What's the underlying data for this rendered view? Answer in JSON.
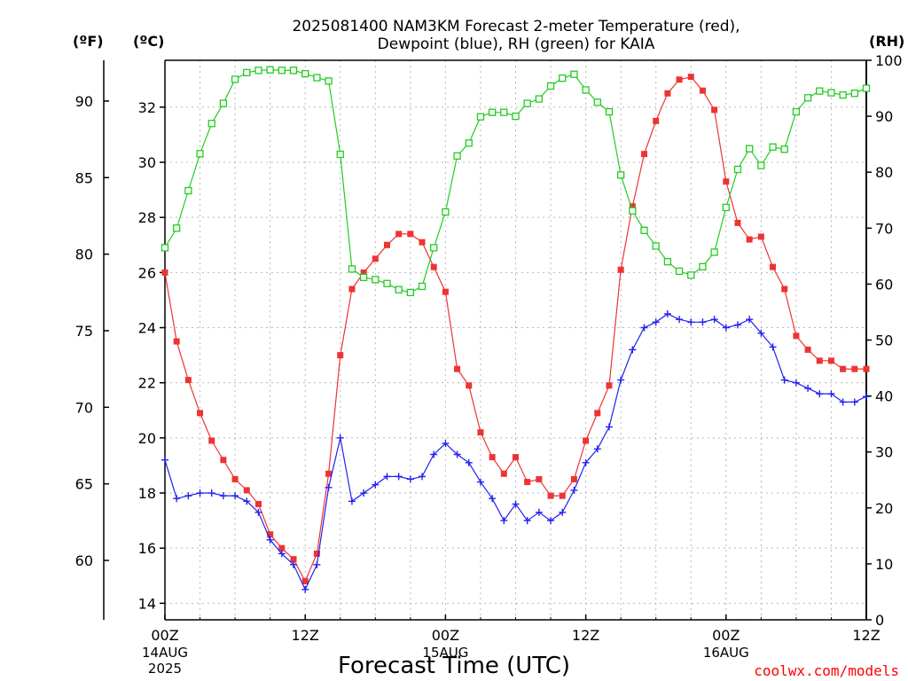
{
  "header": {
    "title_line1": "2025081400 NAM3KM Forecast 2-meter Temperature (red),",
    "title_line2": "Dewpoint (blue), RH (green) for KAIA",
    "unit_f": "(ºF)",
    "unit_c": "(ºC)",
    "unit_rh": "(RH)"
  },
  "footer": {
    "x_axis_label": "Forecast Time (UTC)",
    "credit": "coolwx.com/models"
  },
  "colors": {
    "temperature": "#ee3333",
    "dewpoint": "#2222ee",
    "rh": "#22cc22",
    "grid": "#b8b8b8",
    "credit": "#ff0000"
  },
  "chart_data": {
    "type": "line",
    "title": "2025081400 NAM3KM Forecast 2-meter Temperature (red), Dewpoint (blue), RH (green) for KAIA",
    "xlabel": "Forecast Time (UTC)",
    "xlim_hours": [
      0,
      60
    ],
    "x_ticks": [
      {
        "hour": 0,
        "label": "00Z",
        "date": "14AUG",
        "year": "2025"
      },
      {
        "hour": 12,
        "label": "12Z",
        "date": "",
        "year": ""
      },
      {
        "hour": 24,
        "label": "00Z",
        "date": "15AUG",
        "year": ""
      },
      {
        "hour": 36,
        "label": "12Z",
        "date": "",
        "year": ""
      },
      {
        "hour": 48,
        "label": "00Z",
        "date": "16AUG",
        "year": ""
      },
      {
        "hour": 60,
        "label": "12Z",
        "date": "",
        "year": ""
      }
    ],
    "axes": {
      "celsius": {
        "label": "(ºC)",
        "ticks": [
          14,
          16,
          18,
          20,
          22,
          24,
          26,
          28,
          30,
          32
        ],
        "lim": [
          13.4,
          33.7
        ]
      },
      "fahrenheit": {
        "label": "(ºF)",
        "ticks": [
          60,
          65,
          70,
          75,
          80,
          85,
          90
        ]
      },
      "rh": {
        "label": "(RH)",
        "ticks": [
          0,
          10,
          20,
          30,
          40,
          50,
          60,
          70,
          80,
          90,
          100
        ],
        "lim": [
          0,
          100
        ]
      }
    },
    "grid": true,
    "series": [
      {
        "name": "Temperature",
        "unit": "C",
        "color": "#ee3333",
        "marker": "filled-square",
        "hours": [
          0,
          1,
          2,
          3,
          4,
          5,
          6,
          7,
          8,
          9,
          10,
          11,
          12,
          13,
          14,
          15,
          16,
          17,
          18,
          19,
          20,
          21,
          22,
          23,
          24,
          25,
          26,
          27,
          28,
          29,
          30,
          31,
          32,
          33,
          34,
          35,
          36,
          37,
          38,
          39,
          40,
          41,
          42,
          43,
          44,
          45,
          46,
          47,
          48,
          49,
          50,
          51,
          52,
          53,
          54,
          55,
          56,
          57,
          58,
          59,
          60
        ],
        "values": [
          26.0,
          23.5,
          22.1,
          20.9,
          19.9,
          19.2,
          18.5,
          18.1,
          17.6,
          16.5,
          16.0,
          15.6,
          14.8,
          15.8,
          18.7,
          23.0,
          25.4,
          26.0,
          26.5,
          27.0,
          27.4,
          27.4,
          27.1,
          26.2,
          25.3,
          22.5,
          21.9,
          20.2,
          19.3,
          18.7,
          19.3,
          18.4,
          18.5,
          17.9,
          17.9,
          18.5,
          19.9,
          20.9,
          21.9,
          26.1,
          28.4,
          30.3,
          31.5,
          32.5,
          33.0,
          33.1,
          32.6,
          31.9,
          29.3,
          27.8,
          27.2,
          27.3,
          26.2,
          25.4,
          23.7,
          23.2,
          22.8,
          22.8,
          22.5,
          22.5,
          22.5
        ]
      },
      {
        "name": "Dewpoint",
        "unit": "C",
        "color": "#2222ee",
        "marker": "plus",
        "hours": [
          0,
          1,
          2,
          3,
          4,
          5,
          6,
          7,
          8,
          9,
          10,
          11,
          12,
          13,
          14,
          15,
          16,
          17,
          18,
          19,
          20,
          21,
          22,
          23,
          24,
          25,
          26,
          27,
          28,
          29,
          30,
          31,
          32,
          33,
          34,
          35,
          36,
          37,
          38,
          39,
          40,
          41,
          42,
          43,
          44,
          45,
          46,
          47,
          48,
          49,
          50,
          51,
          52,
          53,
          54,
          55,
          56,
          57,
          58,
          59,
          60
        ],
        "values": [
          19.2,
          17.8,
          17.9,
          18.0,
          18.0,
          17.9,
          17.9,
          17.7,
          17.3,
          16.3,
          15.8,
          15.4,
          14.5,
          15.4,
          18.2,
          20.0,
          17.7,
          18.0,
          18.3,
          18.6,
          18.6,
          18.5,
          18.6,
          19.4,
          19.8,
          19.4,
          19.1,
          18.4,
          17.8,
          17.0,
          17.6,
          17.0,
          17.3,
          17.0,
          17.3,
          18.1,
          19.1,
          19.6,
          20.4,
          22.1,
          23.2,
          24.0,
          24.2,
          24.5,
          24.3,
          24.2,
          24.2,
          24.3,
          24.0,
          24.1,
          24.3,
          23.8,
          23.3,
          22.1,
          22.0,
          21.8,
          21.6,
          21.6,
          21.3,
          21.3,
          21.5
        ]
      },
      {
        "name": "RH",
        "unit": "%",
        "color": "#22cc22",
        "marker": "open-square",
        "hours": [
          0,
          1,
          2,
          3,
          4,
          5,
          6,
          7,
          8,
          9,
          10,
          11,
          12,
          13,
          14,
          15,
          16,
          17,
          18,
          19,
          20,
          21,
          22,
          23,
          24,
          25,
          26,
          27,
          28,
          29,
          30,
          31,
          32,
          33,
          34,
          35,
          36,
          37,
          38,
          39,
          40,
          41,
          42,
          43,
          44,
          45,
          46,
          47,
          48,
          49,
          50,
          51,
          52,
          53,
          54,
          55,
          56,
          57,
          58,
          59,
          60
        ],
        "values": [
          66.5,
          70.0,
          76.7,
          83.3,
          88.7,
          92.3,
          96.6,
          97.8,
          98.2,
          98.3,
          98.2,
          98.2,
          97.6,
          96.9,
          96.3,
          83.2,
          62.7,
          61.2,
          60.8,
          60.1,
          59.0,
          58.5,
          59.6,
          66.5,
          72.9,
          82.9,
          85.2,
          89.9,
          90.7,
          90.7,
          90.0,
          92.3,
          93.1,
          95.4,
          96.8,
          97.5,
          94.7,
          92.5,
          90.8,
          79.5,
          73.1,
          69.6,
          66.8,
          64.0,
          62.3,
          61.6,
          63.1,
          65.7,
          73.7,
          80.5,
          84.2,
          81.2,
          84.5,
          84.1,
          90.8,
          93.3,
          94.5,
          94.2,
          93.8,
          94.1,
          95.0
        ]
      }
    ]
  }
}
